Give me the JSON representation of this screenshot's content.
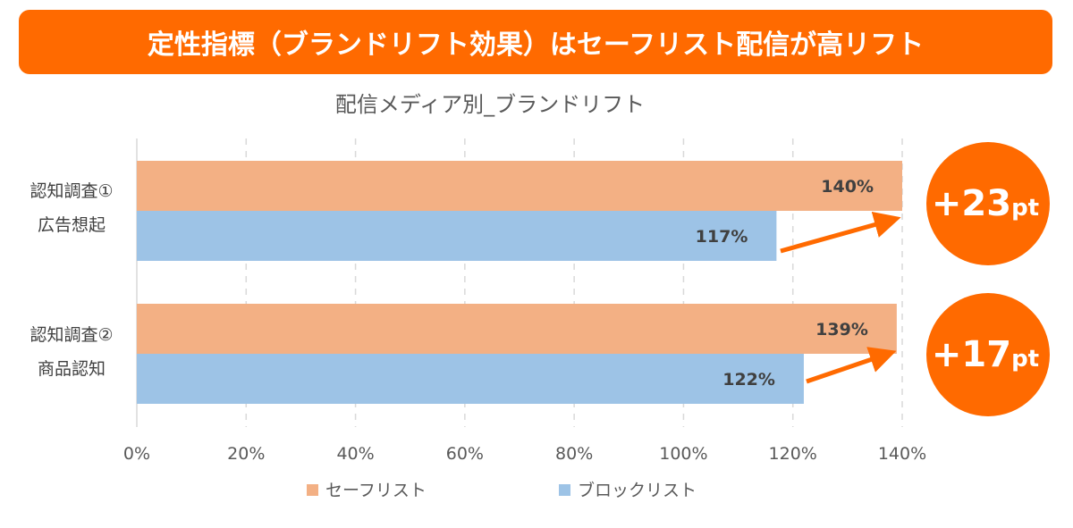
{
  "banner": {
    "title": "定性指標（ブランドリフト効果）はセーフリスト配信が高リフト"
  },
  "chart_data": {
    "type": "bar",
    "orientation": "horizontal",
    "title": "配信メディア別_ブランドリフト",
    "categories": [
      {
        "line1": "認知調査①",
        "line2": "広告想起"
      },
      {
        "line1": "認知調査②",
        "line2": "商品認知"
      }
    ],
    "series": [
      {
        "name": "セーフリスト",
        "values": [
          140,
          139
        ],
        "labels": [
          "140%",
          "139%"
        ],
        "color": "#f3b084"
      },
      {
        "name": "ブロックリスト",
        "values": [
          117,
          122
        ],
        "labels": [
          "117%",
          "122%"
        ],
        "color": "#9dc3e6"
      }
    ],
    "xlim": [
      0,
      140
    ],
    "xticks": [
      "0%",
      "20%",
      "40%",
      "60%",
      "80%",
      "100%",
      "120%",
      "140%"
    ],
    "grid": "vertical dashed",
    "legend": "bottom",
    "annotations": [
      {
        "big": "+23",
        "unit": "pt",
        "color": "#ff6a00"
      },
      {
        "big": "+17",
        "unit": "pt",
        "color": "#ff6a00"
      }
    ]
  }
}
